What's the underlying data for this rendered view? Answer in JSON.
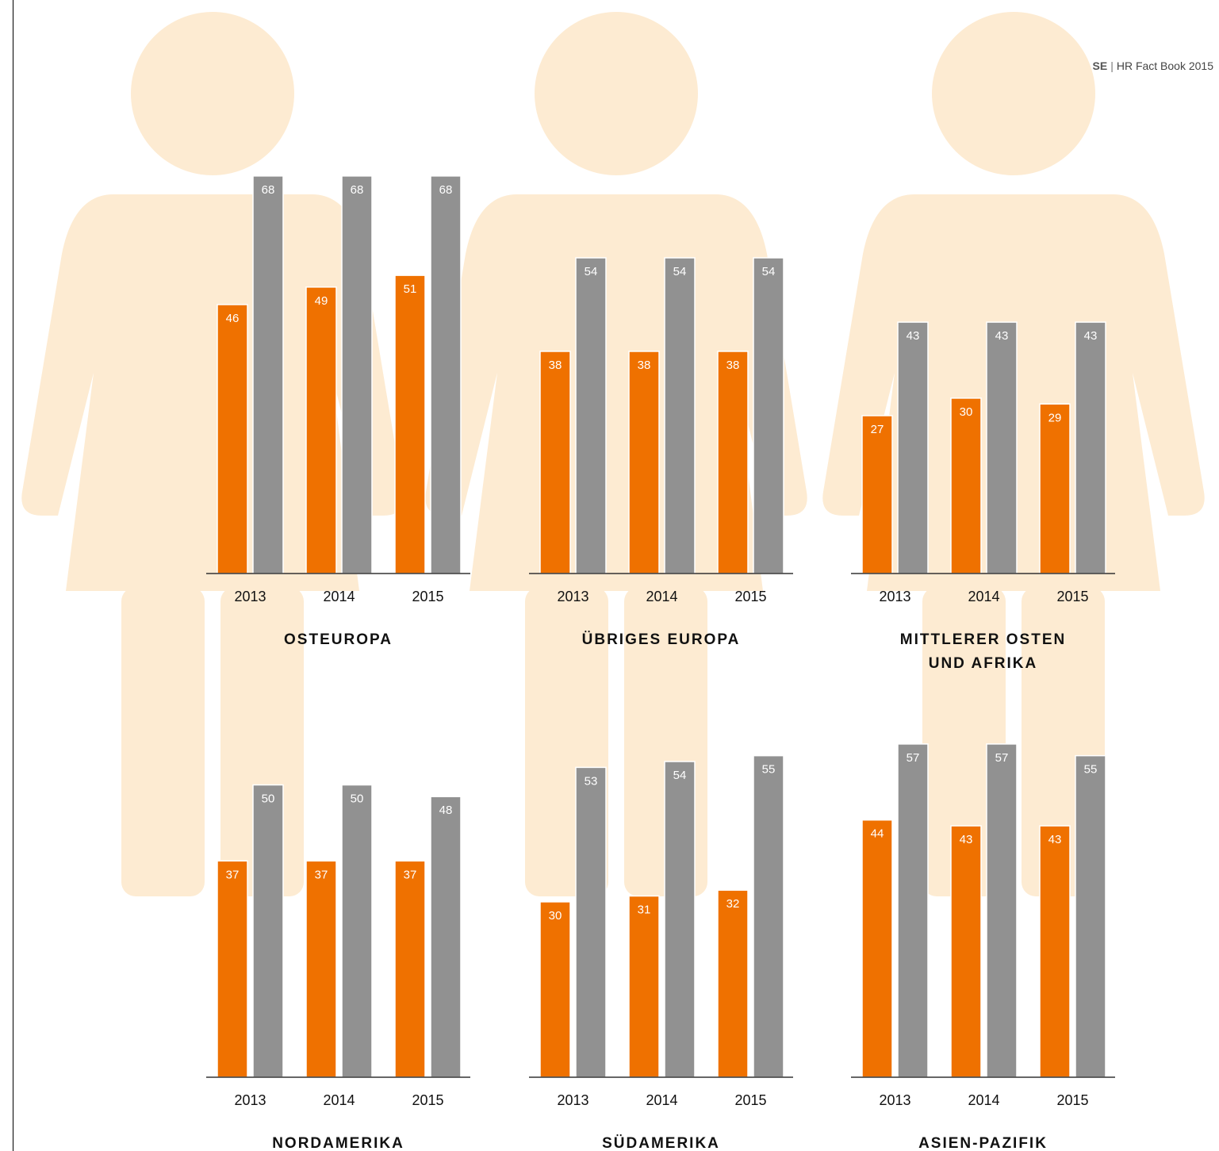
{
  "header": {
    "brand": "Allianz SE",
    "separator": "|",
    "publication": "HR Fact Book 2015"
  },
  "colors": {
    "series_a": "#ef7100",
    "series_b": "#919191",
    "silhouette": "#fdebd2",
    "axis": "#333333"
  },
  "icons": [
    "female-silhouette-icon",
    "female-silhouette-icon",
    "female-silhouette-icon"
  ],
  "chart_data": [
    {
      "type": "bar",
      "title_lines": [
        "OSTEUROPA"
      ],
      "categories": [
        "2013",
        "2014",
        "2015"
      ],
      "series": [
        {
          "values": [
            46,
            49,
            51
          ]
        },
        {
          "values": [
            68,
            68,
            68
          ]
        }
      ],
      "ylim": [
        0,
        70
      ],
      "grid": false,
      "legend": "none"
    },
    {
      "type": "bar",
      "title_lines": [
        "ÜBRIGES EUROPA"
      ],
      "categories": [
        "2013",
        "2014",
        "2015"
      ],
      "series": [
        {
          "values": [
            38,
            38,
            38
          ]
        },
        {
          "values": [
            54,
            54,
            54
          ]
        }
      ],
      "ylim": [
        0,
        70
      ],
      "grid": false,
      "legend": "none"
    },
    {
      "type": "bar",
      "title_lines": [
        "MITTLERER OSTEN",
        "UND AFRIKA"
      ],
      "categories": [
        "2013",
        "2014",
        "2015"
      ],
      "series": [
        {
          "values": [
            27,
            30,
            29
          ]
        },
        {
          "values": [
            43,
            43,
            43
          ]
        }
      ],
      "ylim": [
        0,
        70
      ],
      "grid": false,
      "legend": "none"
    },
    {
      "type": "bar",
      "title_lines": [
        "NORDAMERIKA"
      ],
      "categories": [
        "2013",
        "2014",
        "2015"
      ],
      "series": [
        {
          "values": [
            37,
            37,
            37
          ]
        },
        {
          "values": [
            50,
            50,
            48
          ]
        }
      ],
      "ylim": [
        0,
        70
      ],
      "grid": false,
      "legend": "none"
    },
    {
      "type": "bar",
      "title_lines": [
        "SÜDAMERIKA"
      ],
      "categories": [
        "2013",
        "2014",
        "2015"
      ],
      "series": [
        {
          "values": [
            30,
            31,
            32
          ]
        },
        {
          "values": [
            53,
            54,
            55
          ]
        }
      ],
      "ylim": [
        0,
        70
      ],
      "grid": false,
      "legend": "none"
    },
    {
      "type": "bar",
      "title_lines": [
        "ASIEN-PAZIFIK"
      ],
      "categories": [
        "2013",
        "2014",
        "2015"
      ],
      "series": [
        {
          "values": [
            44,
            43,
            43
          ]
        },
        {
          "values": [
            57,
            57,
            55
          ]
        }
      ],
      "ylim": [
        0,
        70
      ],
      "grid": false,
      "legend": "none"
    }
  ]
}
